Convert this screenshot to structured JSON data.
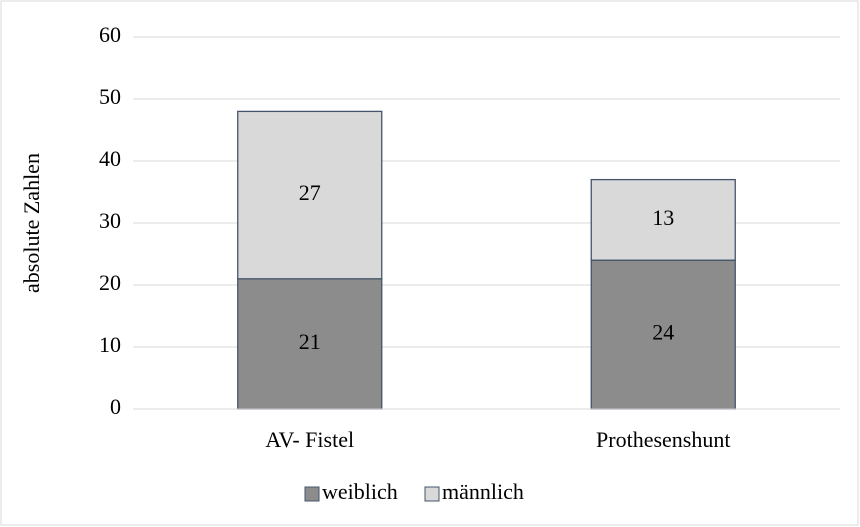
{
  "chart_data": {
    "type": "stacked_bar",
    "y_label": "absolute Zahlen",
    "categories": [
      "AV- Fistel",
      "Prothesenshunt"
    ],
    "series": [
      {
        "name": "weiblich",
        "color": "#8c8c8c",
        "values": [
          21,
          24
        ]
      },
      {
        "name": "männlich",
        "color": "#d9d9d9",
        "values": [
          27,
          13
        ]
      }
    ],
    "ylim": [
      0,
      60
    ],
    "yticks": [
      0,
      10,
      20,
      30,
      40,
      50,
      60
    ],
    "grid": true,
    "data_labels": true,
    "legend": "bottom"
  }
}
